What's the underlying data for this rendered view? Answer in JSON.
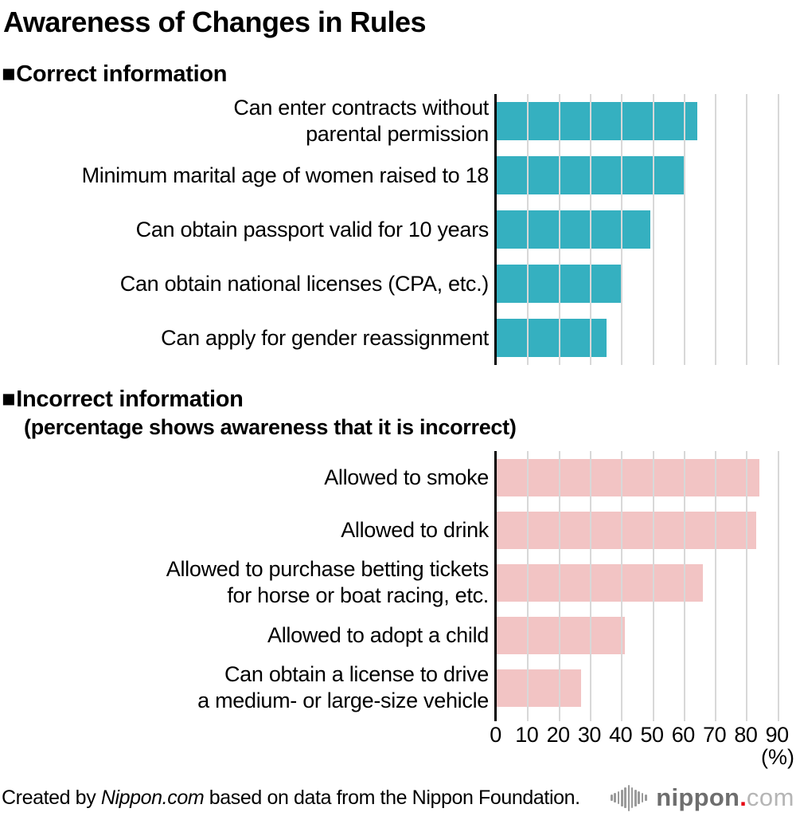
{
  "title": "Awareness of Changes in Rules",
  "axis": {
    "ticks": [
      0,
      10,
      20,
      30,
      40,
      50,
      60,
      70,
      80,
      90
    ],
    "unit_label": "(%)"
  },
  "sections": [
    {
      "marker": "■",
      "heading": "Correct information",
      "subheading": "",
      "bar_color": "#35B0C0",
      "items": [
        {
          "label": "Can enter contracts without parental permission",
          "label_lines": [
            "Can enter contracts without",
            "parental permission"
          ],
          "value": 64
        },
        {
          "label": "Minimum marital age of women raised to 18",
          "label_lines": [
            "Minimum marital age of women raised to 18"
          ],
          "value": 60
        },
        {
          "label": "Can obtain passport valid for 10 years",
          "label_lines": [
            "Can obtain passport valid for 10 years"
          ],
          "value": 49
        },
        {
          "label": "Can obtain national licenses (CPA, etc.)",
          "label_lines": [
            "Can obtain national licenses (CPA, etc.)"
          ],
          "value": 40
        },
        {
          "label": "Can apply for gender reassignment",
          "label_lines": [
            "Can apply for gender reassignment"
          ],
          "value": 35
        }
      ]
    },
    {
      "marker": "■",
      "heading": "Incorrect information",
      "subheading": "(percentage shows awareness that it is incorrect)",
      "bar_color": "#F2C4C4",
      "items": [
        {
          "label": "Allowed to smoke",
          "label_lines": [
            "Allowed to smoke"
          ],
          "value": 84
        },
        {
          "label": "Allowed to drink",
          "label_lines": [
            "Allowed to drink"
          ],
          "value": 83
        },
        {
          "label": "Allowed to purchase betting tickets for horse or boat racing, etc.",
          "label_lines": [
            "Allowed to purchase betting tickets",
            "for horse or boat racing, etc."
          ],
          "value": 66
        },
        {
          "label": "Allowed to adopt a child",
          "label_lines": [
            "Allowed to adopt a child"
          ],
          "value": 41
        },
        {
          "label": "Can obtain a license to drive a medium- or large-size vehicle",
          "label_lines": [
            "Can obtain a license to drive",
            "a medium- or large-size vehicle"
          ],
          "value": 27
        }
      ]
    }
  ],
  "footer": {
    "credit_prefix": "Created by ",
    "credit_brand": "Nippon.com",
    "credit_suffix": " based on data from the Nippon Foundation.",
    "logo_name": "nippon",
    "logo_dot": ".",
    "logo_tld": "com"
  },
  "colors": {
    "correct_bar": "#35B0C0",
    "incorrect_bar": "#F2C4C4",
    "gridline": "#D8D8D8",
    "axis_line": "#000000",
    "logo_red": "#E60012",
    "logo_dark_gray": "#6E6E6E",
    "logo_light_gray": "#B5B5B5"
  },
  "chart_data": [
    {
      "type": "bar",
      "orientation": "horizontal",
      "title": "Correct information",
      "categories": [
        "Can enter contracts without parental permission",
        "Minimum marital age of women raised to 18",
        "Can obtain passport valid for 10 years",
        "Can obtain national licenses (CPA, etc.)",
        "Can apply for gender reassignment"
      ],
      "values": [
        64,
        60,
        49,
        40,
        35
      ],
      "xlabel": "(%)",
      "ylabel": "",
      "xlim": [
        0,
        96
      ],
      "xticks": [
        0,
        10,
        20,
        30,
        40,
        50,
        60,
        70,
        80,
        90
      ],
      "grid": true,
      "legend": "none",
      "bar_color": "#35B0C0"
    },
    {
      "type": "bar",
      "orientation": "horizontal",
      "title": "Incorrect information (percentage shows awareness that it is incorrect)",
      "categories": [
        "Allowed to smoke",
        "Allowed to drink",
        "Allowed to purchase betting tickets for horse or boat racing, etc.",
        "Allowed to adopt a child",
        "Can obtain a license to drive a medium- or large-size vehicle"
      ],
      "values": [
        84,
        83,
        66,
        41,
        27
      ],
      "xlabel": "(%)",
      "ylabel": "",
      "xlim": [
        0,
        96
      ],
      "xticks": [
        0,
        10,
        20,
        30,
        40,
        50,
        60,
        70,
        80,
        90
      ],
      "grid": true,
      "legend": "none",
      "bar_color": "#F2C4C4"
    }
  ]
}
